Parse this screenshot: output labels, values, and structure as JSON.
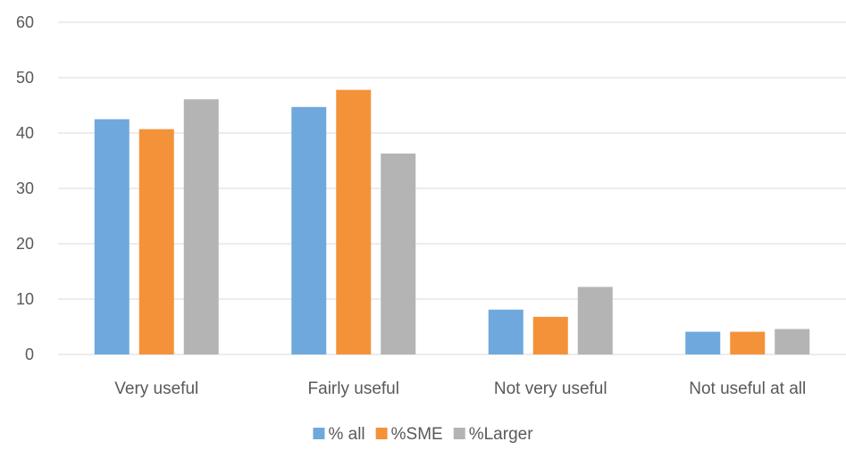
{
  "chart_data": {
    "type": "bar",
    "title": "",
    "xlabel": "",
    "ylabel": "",
    "ylim": [
      0,
      60
    ],
    "yticks": [
      0,
      10,
      20,
      30,
      40,
      50,
      60
    ],
    "grid": true,
    "legend_position": "bottom",
    "categories": [
      "Very useful",
      "Fairly useful",
      "Not very useful",
      "Not useful at all"
    ],
    "series": [
      {
        "name": "% all",
        "color": "#6FA8DC",
        "values": [
          42.5,
          44.7,
          8.1,
          4.1
        ]
      },
      {
        "name": "%SME",
        "color": "#F4923A",
        "values": [
          40.7,
          47.8,
          6.8,
          4.1
        ]
      },
      {
        "name": "%Larger",
        "color": "#B4B4B4",
        "values": [
          46.1,
          36.3,
          12.2,
          4.6
        ]
      }
    ]
  }
}
